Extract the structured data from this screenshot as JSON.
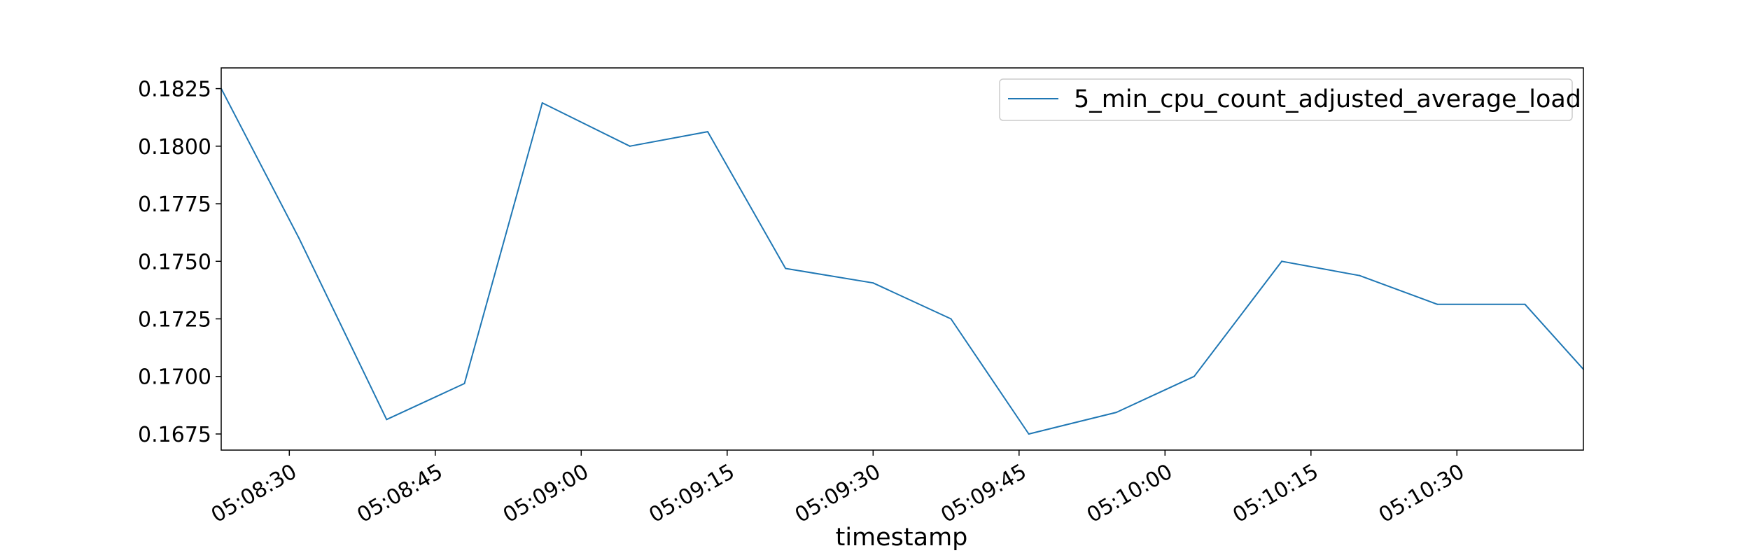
{
  "colors": {
    "series": "#1f77b4",
    "axes": "#000000",
    "legend_border": "#cccccc"
  },
  "chart_data": {
    "type": "line",
    "title": "",
    "xlabel": "timestamp",
    "ylabel": "",
    "grid": false,
    "legend_position": "top-right",
    "xlim": [
      "05:08:23",
      "05:10:43"
    ],
    "ylim": [
      0.1668,
      0.1834
    ],
    "yticks": [
      0.1675,
      0.17,
      0.1725,
      0.175,
      0.1775,
      0.18,
      0.1825
    ],
    "ytick_labels": [
      "0.1675",
      "0.1700",
      "0.1725",
      "0.1750",
      "0.1775",
      "0.1800",
      "0.1825"
    ],
    "xticks": [
      "05:08:30",
      "05:08:45",
      "05:09:00",
      "05:09:15",
      "05:09:30",
      "05:09:45",
      "05:10:00",
      "05:10:15",
      "05:10:30"
    ],
    "series": [
      {
        "name": "5_min_cpu_count_adjusted_average_load",
        "x": [
          "05:08:23",
          "05:08:31",
          "05:08:40",
          "05:08:48",
          "05:08:56",
          "05:09:05",
          "05:09:13",
          "05:09:21",
          "05:09:30",
          "05:09:38",
          "05:09:46",
          "05:09:55",
          "05:10:03",
          "05:10:12",
          "05:10:20",
          "05:10:28",
          "05:10:37",
          "05:10:43"
        ],
        "y": [
          0.1825,
          0.176,
          0.16813,
          0.16969,
          0.18188,
          0.18,
          0.18063,
          0.17469,
          0.17406,
          0.1725,
          0.1675,
          0.16844,
          0.17,
          0.175,
          0.17438,
          0.17313,
          0.17313,
          0.17031
        ]
      }
    ]
  }
}
